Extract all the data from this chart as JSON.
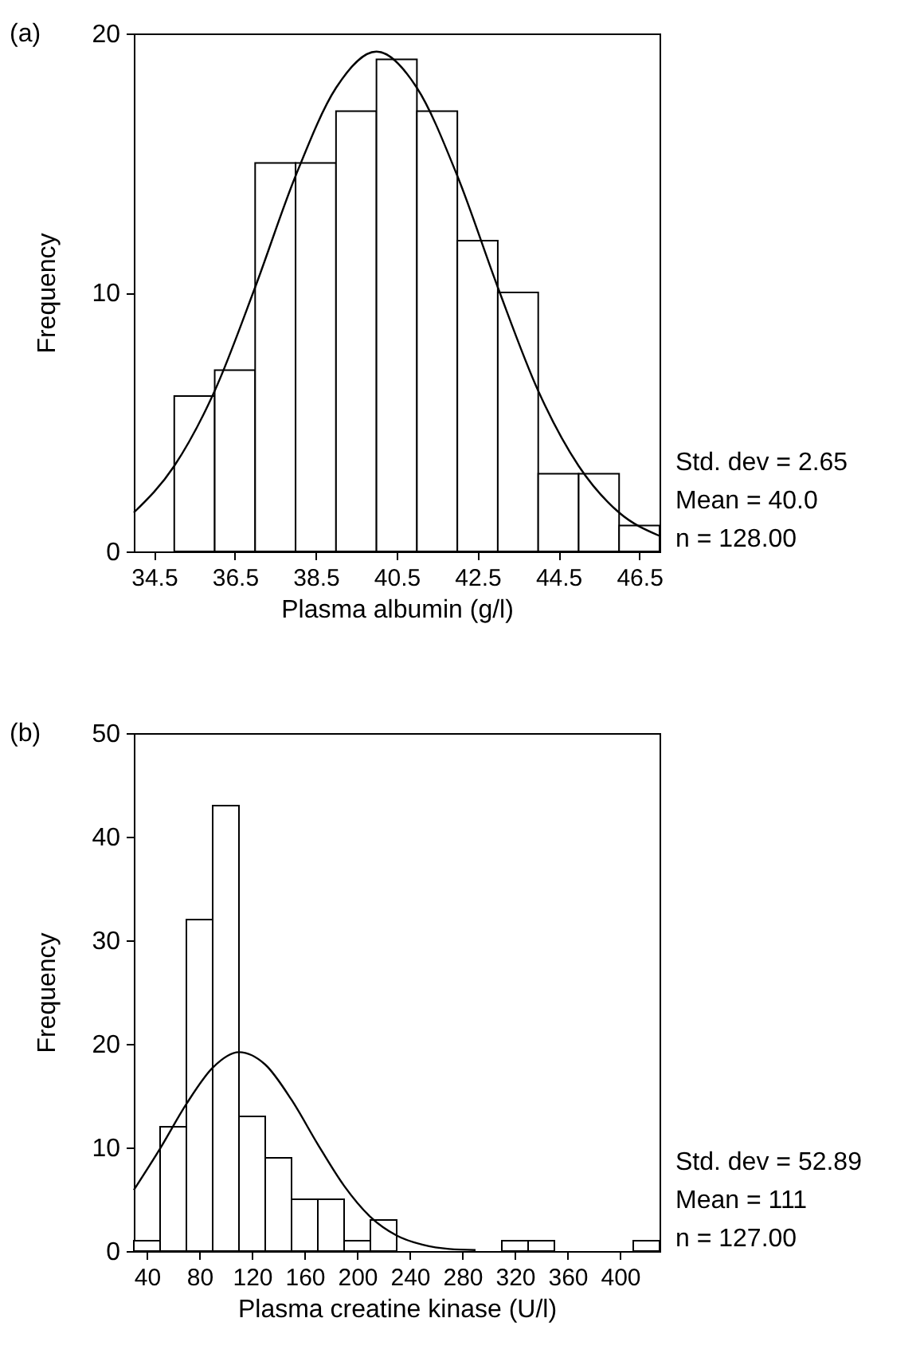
{
  "chart_data": [
    {
      "type": "histogram",
      "title": "(a)",
      "xlabel": "Plasma albumin (g/l)",
      "ylabel": "Frequency",
      "bins": [
        35,
        36,
        37,
        38,
        39,
        40,
        41,
        42,
        43,
        44,
        45,
        46,
        47
      ],
      "values": [
        6,
        7,
        15,
        15,
        17,
        19,
        17,
        12,
        10,
        3,
        3,
        1
      ],
      "color": "#ffffff",
      "series": [
        {
          "type": "line",
          "color": "#000000",
          "x": [
            34,
            35,
            36,
            37,
            38,
            39,
            40,
            41,
            42,
            43,
            44,
            45,
            46,
            47
          ],
          "values": [
            1.5,
            3.3,
            6.2,
            10.2,
            14.5,
            17.9,
            19.3,
            17.9,
            14.5,
            10.2,
            6.2,
            3.3,
            1.5,
            0.6
          ]
        }
      ],
      "xlim": [
        34,
        47
      ],
      "xticks": [
        34.5,
        36.5,
        38.5,
        40.5,
        42.5,
        44.5,
        46.5
      ],
      "ylim": [
        0,
        20
      ],
      "yticks": [
        0,
        10,
        20
      ],
      "grid": false,
      "annotations": [
        "Std. dev = 2.65",
        "Mean = 40.0",
        "n = 128.00"
      ]
    },
    {
      "type": "histogram",
      "title": "(b)",
      "xlabel": "Plasma creatine kinase (U/l)",
      "ylabel": "Frequency",
      "bins": [
        30,
        50,
        70,
        90,
        110,
        130,
        150,
        170,
        190,
        210,
        230,
        250,
        270,
        290,
        310,
        330,
        350,
        370,
        390,
        410,
        430
      ],
      "values": [
        1,
        12,
        32,
        43,
        13,
        9,
        5,
        5,
        1,
        3,
        0,
        0,
        0,
        0,
        1,
        1,
        0,
        0,
        0,
        1
      ],
      "color": "#ffffff",
      "series": [
        {
          "type": "line",
          "color": "#000000",
          "x": [
            30,
            50,
            70,
            90,
            110,
            130,
            150,
            170,
            190,
            210,
            230,
            250,
            270,
            290
          ],
          "values": [
            5.9,
            9.9,
            14.2,
            17.7,
            19.2,
            18.0,
            14.6,
            10.3,
            6.3,
            3.3,
            1.5,
            0.6,
            0.2,
            0.1
          ]
        }
      ],
      "xlim": [
        30,
        430
      ],
      "xticks": [
        40,
        80,
        120,
        160,
        200,
        240,
        280,
        320,
        360,
        400
      ],
      "ylim": [
        0,
        50
      ],
      "yticks": [
        0,
        10,
        20,
        30,
        40,
        50
      ],
      "grid": false,
      "annotations": [
        "Std. dev = 52.89",
        "Mean = 111",
        "n = 127.00"
      ]
    }
  ]
}
